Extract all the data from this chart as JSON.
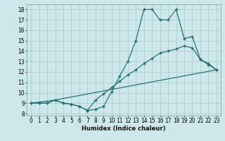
{
  "xlabel": "Humidex (Indice chaleur)",
  "xlim": [
    -0.5,
    23.5
  ],
  "ylim": [
    7.8,
    18.5
  ],
  "xticks": [
    0,
    1,
    2,
    3,
    4,
    5,
    6,
    7,
    8,
    9,
    10,
    11,
    12,
    13,
    14,
    15,
    16,
    17,
    18,
    19,
    20,
    21,
    22,
    23
  ],
  "yticks": [
    8,
    9,
    10,
    11,
    12,
    13,
    14,
    15,
    16,
    17,
    18
  ],
  "bg_color": "#cde8ea",
  "grid_color": "#aecdd0",
  "line_color": "#1f6b6b",
  "line1_x": [
    0,
    1,
    2,
    3,
    4,
    5,
    6,
    7,
    8,
    9,
    10,
    11,
    12,
    13,
    14,
    15,
    16,
    17,
    18,
    19,
    20,
    21,
    22,
    23
  ],
  "line1_y": [
    9,
    9,
    9,
    9.3,
    9,
    8.9,
    8.7,
    8.3,
    8.4,
    8.7,
    10.1,
    11.6,
    13.0,
    15.0,
    18.0,
    18.0,
    17.0,
    17.0,
    18.0,
    15.2,
    15.4,
    13.2,
    12.7,
    12.2
  ],
  "line2_x": [
    0,
    1,
    2,
    3,
    4,
    5,
    6,
    7,
    8,
    9,
    10,
    11,
    12,
    13,
    14,
    15,
    16,
    17,
    18,
    19,
    20,
    21,
    22,
    23
  ],
  "line2_y": [
    9,
    9,
    9,
    9.3,
    9,
    8.9,
    8.7,
    8.3,
    9.3,
    9.9,
    10.5,
    11.1,
    11.7,
    12.2,
    12.8,
    13.3,
    13.8,
    14.0,
    14.2,
    14.5,
    14.3,
    13.2,
    12.8,
    12.2
  ],
  "line3_x": [
    0,
    3,
    23
  ],
  "line3_y": [
    9,
    9.3,
    12.2
  ]
}
